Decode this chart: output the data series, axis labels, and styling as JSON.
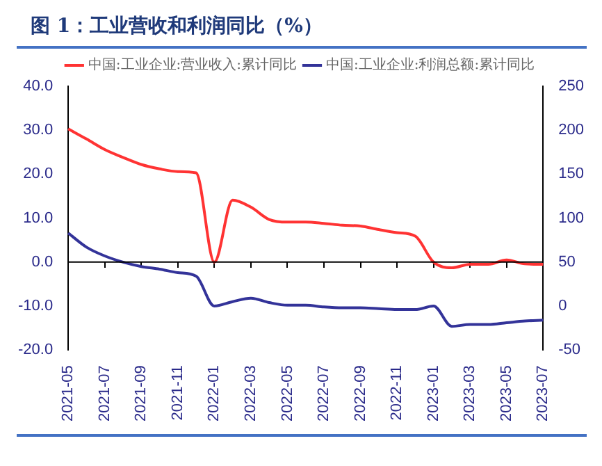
{
  "chart_data": {
    "type": "line",
    "title": "图 1：工业营收和利润同比（%）",
    "categories": [
      "2021-05",
      null,
      "2021-07",
      null,
      "2021-09",
      null,
      "2021-11",
      null,
      "2022-01",
      null,
      "2022-03",
      null,
      "2022-05",
      null,
      "2022-07",
      null,
      "2022-09",
      null,
      "2022-11",
      null,
      "2023-01",
      null,
      "2023-03",
      null,
      "2023-05",
      null,
      "2023-07"
    ],
    "series": [
      {
        "name": "中国:工业企业:营业收入:累计同比",
        "color": "#ff3333",
        "values": [
          30.3,
          28.0,
          25.6,
          23.8,
          22.2,
          21.2,
          20.6,
          20.3,
          0,
          14.1,
          12.5,
          9.7,
          9.1,
          9.1,
          8.8,
          8.4,
          8.2,
          7.4,
          6.7,
          5.9,
          0,
          -1.3,
          -0.5,
          -0.5,
          0.5,
          -0.4,
          -0.5
        ]
      },
      {
        "name": "中国:工业企业:利润总额:累计同比",
        "color": "#333399",
        "axis": "y2",
        "values": [
          83,
          67,
          57,
          50,
          45,
          42,
          38,
          34,
          0,
          5,
          9,
          4,
          1,
          1,
          -1,
          -2,
          -2,
          -3,
          -4,
          -4,
          0,
          -23,
          -21,
          -21,
          -19,
          -17,
          -16
        ]
      }
    ],
    "ylim": [
      -20,
      40
    ],
    "yticks": [
      {
        "value": -20,
        "label": "-20.0"
      },
      {
        "value": -10,
        "label": "-10.0"
      },
      {
        "value": 0,
        "label": "0.0"
      },
      {
        "value": 10,
        "label": "10.0"
      },
      {
        "value": 20,
        "label": "20.0"
      },
      {
        "value": 30,
        "label": "30.0"
      },
      {
        "value": 40,
        "label": "40.0"
      }
    ],
    "y2lim": [
      -50,
      250
    ],
    "y2ticks": [
      -50,
      0,
      50,
      100,
      150,
      200,
      250
    ],
    "ref_lines": [
      {
        "axis": "y",
        "value": 0,
        "color": "#000000"
      }
    ],
    "legend": "top",
    "grid": false,
    "marker": "none",
    "line_style": "solid"
  }
}
